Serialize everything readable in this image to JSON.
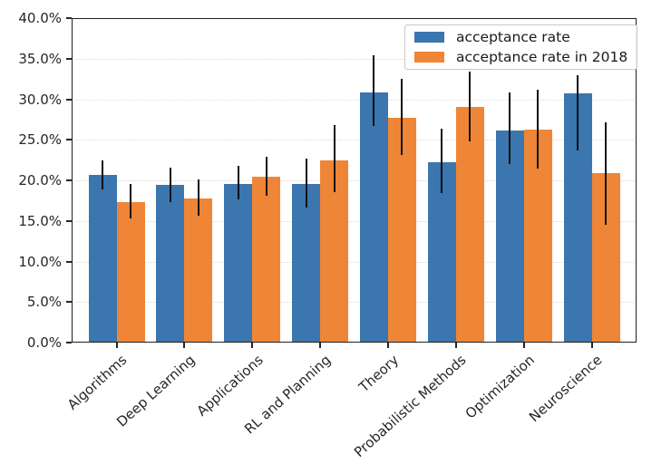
{
  "legend": {
    "entries": [
      {
        "label": "acceptance rate",
        "color": "#3b76af"
      },
      {
        "label": "acceptance rate in 2018",
        "color": "#ef8536"
      }
    ]
  },
  "axes": {
    "ytick_labels": [
      "0.0%",
      "5.0%",
      "10.0%",
      "15.0%",
      "20.0%",
      "25.0%",
      "30.0%",
      "35.0%",
      "40.0%"
    ]
  },
  "chart_data": {
    "type": "bar",
    "title": "",
    "xlabel": "",
    "ylabel": "",
    "categories": [
      "Algorithms",
      "Deep Learning",
      "Applications",
      "RL and Planning",
      "Theory",
      "Probabilistic Methods",
      "Optimization",
      "Neuroscience"
    ],
    "series": [
      {
        "name": "acceptance rate",
        "color": "#3b76af",
        "values": [
          20.7,
          19.4,
          19.6,
          19.5,
          30.8,
          22.2,
          26.2,
          30.7
        ],
        "error_low": [
          18.9,
          17.3,
          17.6,
          16.6,
          26.7,
          18.4,
          22.0,
          23.7
        ],
        "error_high": [
          22.5,
          21.6,
          21.8,
          22.7,
          35.4,
          26.4,
          30.8,
          33.0
        ]
      },
      {
        "name": "acceptance rate in 2018",
        "color": "#ef8536",
        "values": [
          17.3,
          17.8,
          20.4,
          22.5,
          27.7,
          29.1,
          26.3,
          20.9
        ],
        "error_low": [
          15.3,
          15.6,
          18.1,
          18.6,
          23.1,
          24.8,
          21.4,
          14.5
        ],
        "error_high": [
          19.6,
          20.1,
          22.9,
          26.8,
          32.5,
          33.4,
          31.2,
          27.1
        ]
      }
    ],
    "ylim": [
      0,
      40
    ],
    "ytick_step": 5,
    "grid": {
      "axis": "y",
      "style": "dotted",
      "color": "#d9d9d9"
    },
    "error_bar_color": "#111111",
    "legend_position": "upper right",
    "x_label_rotation_deg": 42
  }
}
